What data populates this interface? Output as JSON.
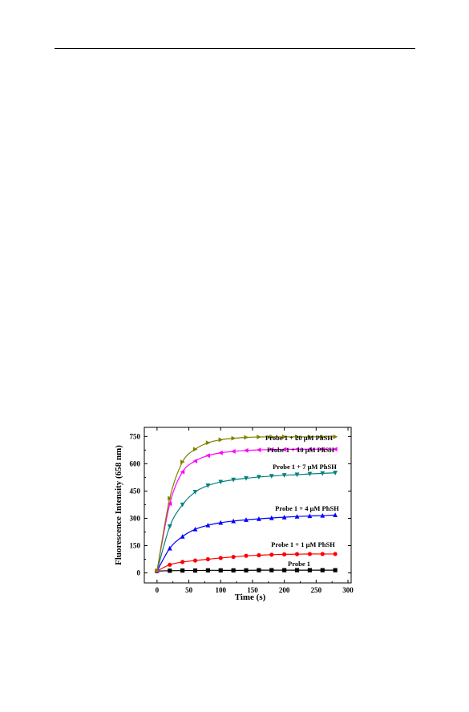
{
  "chart_data": {
    "type": "line",
    "xlabel": "Time (s)",
    "ylabel": "Fluorescence Intensity (658 nm)",
    "xlim": [
      -20,
      305
    ],
    "ylim": [
      -55,
      800
    ],
    "xticks": [
      0,
      50,
      100,
      150,
      200,
      250,
      300
    ],
    "yticks": [
      0,
      150,
      300,
      450,
      600,
      750
    ],
    "x": [
      0,
      20,
      40,
      60,
      80,
      100,
      120,
      140,
      160,
      180,
      200,
      220,
      240,
      260,
      280
    ],
    "series": [
      {
        "name": "Probe 1",
        "marker": "square",
        "color": "#000000",
        "values": [
          10,
          12,
          13,
          13,
          14,
          14,
          14,
          14,
          15,
          15,
          15,
          15,
          15,
          15,
          15
        ]
      },
      {
        "name": "Probe 1 + 1 μM PhSH",
        "marker": "circle",
        "color": "#ff0000",
        "values": [
          10,
          45,
          60,
          68,
          75,
          82,
          88,
          94,
          97,
          100,
          102,
          103,
          104,
          104,
          104
        ]
      },
      {
        "name": "Probe 1 + 4 μM PhSH",
        "marker": "triangle-up",
        "color": "#0000ff",
        "values": [
          10,
          135,
          200,
          240,
          262,
          276,
          285,
          292,
          297,
          302,
          306,
          310,
          313,
          315,
          318
        ]
      },
      {
        "name": "Probe 1 + 7 μM PhSH",
        "marker": "triangle-down",
        "color": "#008080",
        "values": [
          10,
          255,
          375,
          445,
          480,
          500,
          512,
          520,
          527,
          532,
          537,
          540,
          544,
          547,
          550
        ]
      },
      {
        "name": "Probe 1 + 10 μM PhSH",
        "marker": "triangle-left",
        "color": "#ff00ff",
        "values": [
          10,
          380,
          555,
          615,
          645,
          660,
          668,
          673,
          676,
          678,
          679,
          680,
          680,
          680,
          680
        ]
      },
      {
        "name": "Probe 1 + 20 μM PhSH",
        "marker": "triangle-right",
        "color": "#808000",
        "values": [
          10,
          410,
          610,
          680,
          715,
          732,
          740,
          745,
          747,
          748,
          748,
          748,
          748,
          748,
          748
        ]
      }
    ]
  }
}
